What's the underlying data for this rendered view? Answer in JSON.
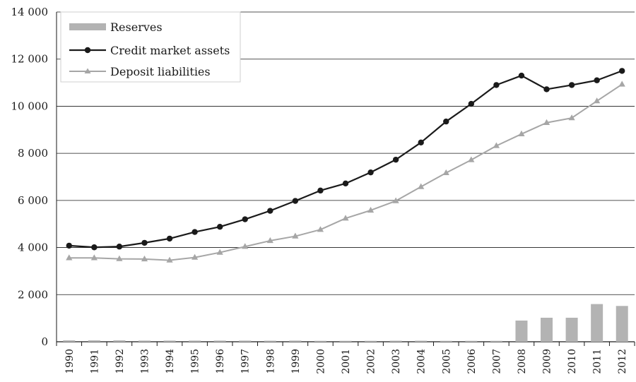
{
  "chart_data": {
    "type": "bar+line",
    "title": "",
    "xlabel": "",
    "ylabel": "",
    "ylim": [
      0,
      14000
    ],
    "y_ticks": [
      0,
      2000,
      4000,
      6000,
      8000,
      10000,
      12000,
      14000
    ],
    "y_tick_labels": [
      "0",
      "2 000",
      "4 000",
      "6 000",
      "8 000",
      "10 000",
      "12 000",
      "14 000"
    ],
    "categories": [
      "1990",
      "1991",
      "1992",
      "1993",
      "1994",
      "1995",
      "1996",
      "1997",
      "1998",
      "1999",
      "2000",
      "2001",
      "2002",
      "2003",
      "2004",
      "2005",
      "2006",
      "2007",
      "2008",
      "2009",
      "2010",
      "2011",
      "2012"
    ],
    "grid": "horizontal",
    "legend_position": "top-left",
    "series": [
      {
        "name": "Reserves",
        "kind": "bar",
        "color": "#b3b3b3",
        "values": [
          60,
          60,
          60,
          50,
          50,
          50,
          50,
          50,
          45,
          50,
          40,
          40,
          40,
          45,
          45,
          40,
          40,
          40,
          900,
          1020,
          1020,
          1600,
          1520
        ]
      },
      {
        "name": "Credit market assets",
        "kind": "line",
        "marker": "circle",
        "color": "#1a1a1a",
        "values": [
          4080,
          4010,
          4040,
          4200,
          4380,
          4660,
          4880,
          5200,
          5560,
          5980,
          6420,
          6720,
          7190,
          7730,
          8460,
          9350,
          10100,
          10900,
          11300,
          10720,
          10900,
          11100,
          11500
        ]
      },
      {
        "name": "Deposit liabilities",
        "kind": "line",
        "marker": "triangle",
        "color": "#a6a6a6",
        "values": [
          3560,
          3560,
          3520,
          3510,
          3460,
          3580,
          3790,
          4040,
          4290,
          4480,
          4760,
          5240,
          5580,
          5980,
          6580,
          7170,
          7720,
          8320,
          8820,
          9300,
          9500,
          10220,
          10930
        ]
      }
    ]
  }
}
